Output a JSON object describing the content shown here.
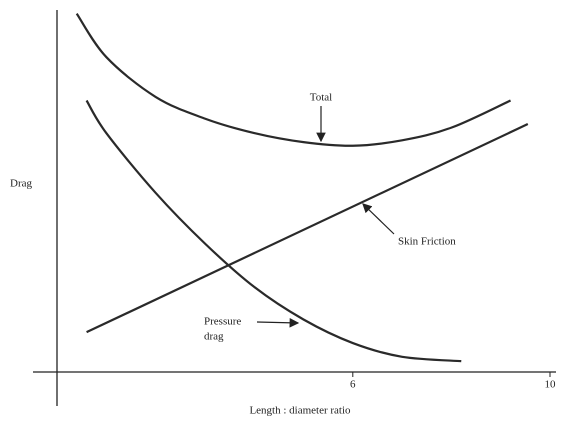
{
  "chart_data": {
    "type": "line",
    "xlabel": "Length : diameter ratio",
    "ylabel": "Drag",
    "xlim": [
      0,
      10
    ],
    "xticks": [
      6,
      10
    ],
    "ylim": [
      0,
      10
    ],
    "annotations": [
      "Total",
      "Skin Friction",
      "Pressure",
      "drag"
    ],
    "series": [
      {
        "name": "Total",
        "color": "#2a2a2a",
        "x": [
          0.4,
          1,
          2,
          3,
          4,
          5,
          6,
          7,
          8,
          9.2
        ],
        "values": [
          9.9,
          8.7,
          7.6,
          7.0,
          6.6,
          6.35,
          6.25,
          6.4,
          6.75,
          7.5
        ]
      },
      {
        "name": "Skin Friction",
        "color": "#2a2a2a",
        "x": [
          0.6,
          9.55
        ],
        "values": [
          1.1,
          6.85
        ]
      },
      {
        "name": "Pressure drag",
        "color": "#2a2a2a",
        "x": [
          0.6,
          1,
          2,
          3,
          4,
          5,
          6,
          7,
          8.2
        ],
        "values": [
          7.5,
          6.6,
          4.95,
          3.55,
          2.35,
          1.45,
          0.8,
          0.42,
          0.3
        ]
      }
    ]
  }
}
